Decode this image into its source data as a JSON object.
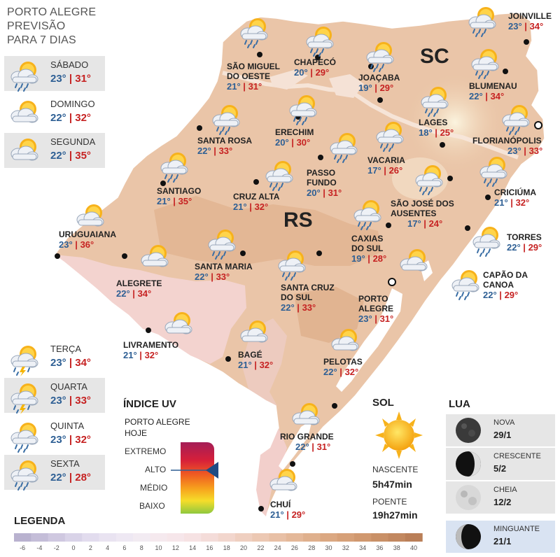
{
  "header": {
    "line1": "PORTO ALEGRE",
    "line2": "PREVISÃO",
    "line3": "PARA 7 DIAS"
  },
  "forecast": [
    {
      "day": "SÁBADO",
      "min": "23°",
      "max": "31°",
      "icon": "sun-cloud-rain-icon"
    },
    {
      "day": "DOMINGO",
      "min": "22°",
      "max": "32°",
      "icon": "sun-cloud-icon"
    },
    {
      "day": "SEGUNDA",
      "min": "22°",
      "max": "35°",
      "icon": "sun-cloud-icon"
    },
    {
      "day": "TERÇA",
      "min": "23°",
      "max": "34°",
      "icon": "sun-cloud-storm-icon"
    },
    {
      "day": "QUARTA",
      "min": "23°",
      "max": "33°",
      "icon": "sun-cloud-storm-icon"
    },
    {
      "day": "QUINTA",
      "min": "23°",
      "max": "32°",
      "icon": "sun-cloud-rain-icon"
    },
    {
      "day": "SEXTA",
      "min": "22°",
      "max": "28°",
      "icon": "sun-cloud-rain-icon"
    }
  ],
  "states": {
    "sc": "SC",
    "rs": "RS"
  },
  "cities": [
    {
      "name": "JOINVILLE",
      "min": "23°",
      "max": "34°"
    },
    {
      "name": "CHAPECÓ",
      "min": "20°",
      "max": "29°"
    },
    {
      "name": "SÃO MIGUEL DO OESTE",
      "min": "21°",
      "max": "31°"
    },
    {
      "name": "JOAÇABA",
      "min": "19°",
      "max": "29°"
    },
    {
      "name": "BLUMENAU",
      "min": "22°",
      "max": "34°"
    },
    {
      "name": "LAGES",
      "min": "18°",
      "max": "25°"
    },
    {
      "name": "FLORIANÓPOLIS",
      "min": "23°",
      "max": "33°"
    },
    {
      "name": "ERECHIM",
      "min": "20°",
      "max": "30°"
    },
    {
      "name": "SANTA ROSA",
      "min": "22°",
      "max": "33°"
    },
    {
      "name": "VACARIA",
      "min": "17°",
      "max": "26°"
    },
    {
      "name": "PASSO FUNDO",
      "min": "20°",
      "max": "31°"
    },
    {
      "name": "CRICIÚMA",
      "min": "21°",
      "max": "32°"
    },
    {
      "name": "SANTIAGO",
      "min": "21°",
      "max": "35°"
    },
    {
      "name": "CRUZ ALTA",
      "min": "21°",
      "max": "32°"
    },
    {
      "name": "SÃO JOSÉ DOS AUSENTES",
      "min": "17°",
      "max": "24°"
    },
    {
      "name": "URUGUAIANA",
      "min": "23°",
      "max": "36°"
    },
    {
      "name": "TORRES",
      "min": "22°",
      "max": "29°"
    },
    {
      "name": "CAXIAS DO SUL",
      "min": "19°",
      "max": "28°"
    },
    {
      "name": "SANTA MARIA",
      "min": "22°",
      "max": "33°"
    },
    {
      "name": "ALEGRETE",
      "min": "22°",
      "max": "34°"
    },
    {
      "name": "CAPÃO DA CANOA",
      "min": "22°",
      "max": "29°"
    },
    {
      "name": "SANTA CRUZ DO SUL",
      "min": "22°",
      "max": "33°"
    },
    {
      "name": "PORTO ALEGRE",
      "min": "23°",
      "max": "31°"
    },
    {
      "name": "LIVRAMENTO",
      "min": "21°",
      "max": "32°"
    },
    {
      "name": "BAGÉ",
      "min": "21°",
      "max": "32°"
    },
    {
      "name": "PELOTAS",
      "min": "22°",
      "max": "32°"
    },
    {
      "name": "RIO GRANDE",
      "min": "22°",
      "max": "31°"
    },
    {
      "name": "CHUÍ",
      "min": "21°",
      "max": "29°"
    }
  ],
  "uv": {
    "title": "ÍNDICE UV",
    "subtitle1": "PORTO ALEGRE",
    "subtitle2": "HOJE",
    "levels": [
      "EXTREMO",
      "ALTO",
      "MÉDIO",
      "BAIXO"
    ],
    "current_level": "ALTO"
  },
  "sol": {
    "title": "SOL",
    "sunrise_label": "NASCENTE",
    "sunrise": "5h47min",
    "sunset_label": "POENTE",
    "sunset": "19h27min"
  },
  "lua": {
    "title": "LUA",
    "phases": [
      {
        "name": "NOVA",
        "date": "29/1"
      },
      {
        "name": "CRESCENTE",
        "date": "5/2"
      },
      {
        "name": "CHEIA",
        "date": "12/2"
      },
      {
        "name": "MINGUANTE",
        "date": "21/1"
      }
    ]
  },
  "legend": {
    "title": "LEGENDA",
    "values": [
      "-6",
      "-4",
      "-2",
      "0",
      "2",
      "4",
      "6",
      "8",
      "10",
      "12",
      "14",
      "16",
      "18",
      "20",
      "22",
      "24",
      "26",
      "28",
      "30",
      "32",
      "34",
      "36",
      "38",
      "40"
    ],
    "colors": [
      "#b9b2cf",
      "#c4bdd8",
      "#cfc8e0",
      "#d9d3e8",
      "#e2dcee",
      "#e9e3f1",
      "#eee8f3",
      "#f2ebf2",
      "#f5e9ee",
      "#f6e6ea",
      "#f6e2e3",
      "#f4dcd9",
      "#f2d6cd",
      "#efcfc0",
      "#ecc8b3",
      "#e8c0a6",
      "#e4b899",
      "#dfb08d",
      "#dba882",
      "#d6a078",
      "#d0986f",
      "#c99067",
      "#c28860",
      "#ba7f58"
    ]
  },
  "colors": {
    "min_temp": "#2e5f94",
    "max_temp": "#c62222",
    "map_fill": "#eac5a8",
    "ocean": "#ffffff"
  }
}
